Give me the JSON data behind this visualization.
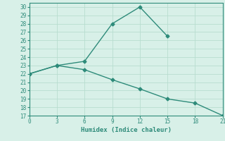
{
  "xlabel": "Humidex (Indice chaleur)",
  "line1_x": [
    0,
    3,
    6,
    9,
    12,
    15
  ],
  "line1_y": [
    22,
    23,
    23.5,
    28,
    30,
    26.5
  ],
  "line2_x": [
    0,
    3,
    6,
    9,
    12,
    15,
    18,
    21
  ],
  "line2_y": [
    22,
    23,
    22.5,
    21.3,
    20.2,
    19.0,
    18.5,
    17
  ],
  "line_color": "#2e8b7a",
  "background_color": "#d8f0e8",
  "grid_color": "#b8ddd0",
  "xlim": [
    0,
    21
  ],
  "ylim": [
    17,
    30.5
  ],
  "xticks": [
    0,
    3,
    6,
    9,
    12,
    15,
    18,
    21
  ],
  "yticks": [
    17,
    18,
    19,
    20,
    21,
    22,
    23,
    24,
    25,
    26,
    27,
    28,
    29,
    30
  ],
  "marker": "D",
  "markersize": 2.5,
  "linewidth": 1.0,
  "tick_fontsize": 5.5,
  "xlabel_fontsize": 6.5
}
